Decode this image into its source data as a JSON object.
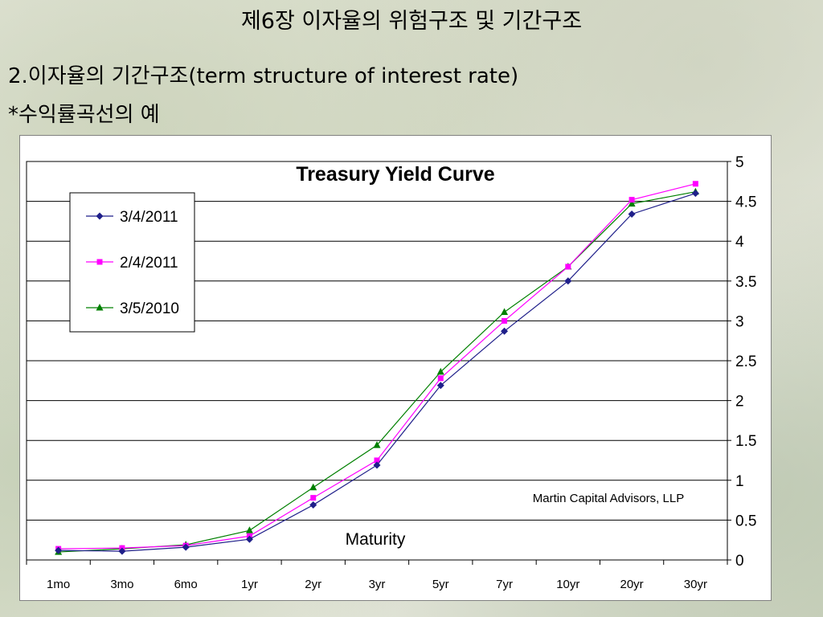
{
  "slide": {
    "title": "제6장 이자율의 위험구조 및 기간구조",
    "subtitle": "2.이자율의 기간구조(term structure of interest rate)",
    "example": "*수익률곡선의 예"
  },
  "chart_data": {
    "type": "line",
    "title": "Treasury Yield Curve",
    "xlabel": "Maturity",
    "ylabel": "",
    "annotation": "Martin Capital Advisors, LLP",
    "categories": [
      "1mo",
      "3mo",
      "6mo",
      "1yr",
      "2yr",
      "3yr",
      "5yr",
      "7yr",
      "10yr",
      "20yr",
      "30yr"
    ],
    "ylim": [
      0,
      5
    ],
    "yticks": [
      "0",
      "0.5",
      "1",
      "1.5",
      "2",
      "2.5",
      "3",
      "3.5",
      "4",
      "4.5",
      "5"
    ],
    "y_axis_side": "right",
    "grid": true,
    "legend_position": "top-left",
    "series": [
      {
        "name": "3/4/2011",
        "color": "#1f1f8a",
        "marker": "diamond",
        "values": [
          0.12,
          0.11,
          0.16,
          0.26,
          0.69,
          1.19,
          2.19,
          2.87,
          3.5,
          4.34,
          4.6
        ]
      },
      {
        "name": "2/4/2011",
        "color": "#ff00ff",
        "marker": "square",
        "values": [
          0.14,
          0.15,
          0.18,
          0.3,
          0.78,
          1.25,
          2.28,
          3.0,
          3.68,
          4.52,
          4.72
        ]
      },
      {
        "name": "3/5/2010",
        "color": "#008000",
        "marker": "triangle",
        "values": [
          0.1,
          0.14,
          0.19,
          0.37,
          0.91,
          1.44,
          2.36,
          3.11,
          3.68,
          4.47,
          4.62
        ]
      }
    ]
  }
}
